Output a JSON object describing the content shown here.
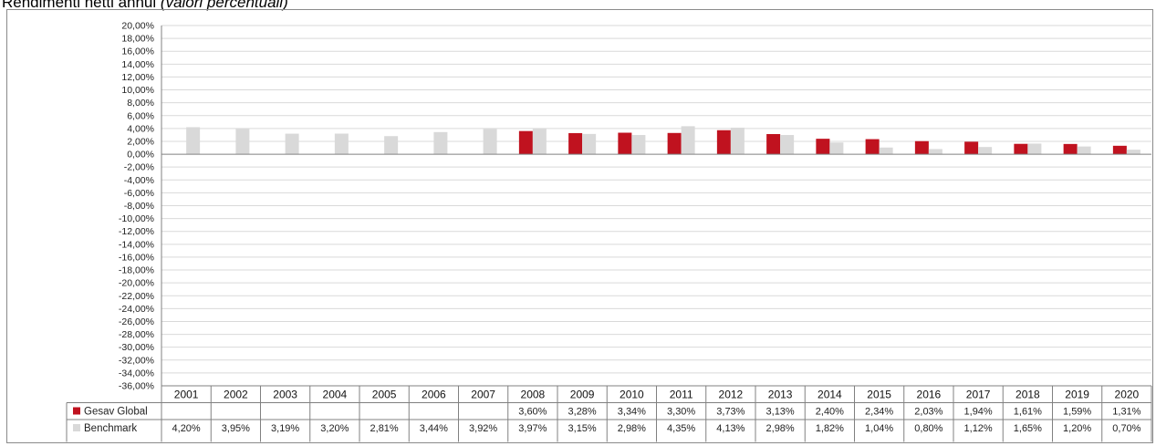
{
  "page": {
    "title": "Rendimenti netti annui",
    "subtitle": "(valori percentuali)"
  },
  "colors": {
    "gesav": "#c0121f",
    "benchmark": "#d9d9d9",
    "grid": "#d9d9d9",
    "axis": "#808080"
  },
  "chart_data": {
    "type": "bar",
    "title": "",
    "xlabel": "",
    "ylabel": "",
    "ylim": [
      -36,
      20
    ],
    "ytick_step": 2,
    "ytick_labels": [
      "20,00%",
      "18,00%",
      "16,00%",
      "14,00%",
      "12,00%",
      "10,00%",
      "8,00%",
      "6,00%",
      "4,00%",
      "2,00%",
      "0,00%",
      "-2,00%",
      "-4,00%",
      "-6,00%",
      "-8,00%",
      "-10,00%",
      "-12,00%",
      "-14,00%",
      "-16,00%",
      "-18,00%",
      "-20,00%",
      "-22,00%",
      "-24,00%",
      "-26,00%",
      "-28,00%",
      "-30,00%",
      "-32,00%",
      "-34,00%",
      "-36,00%"
    ],
    "grid": true,
    "legend": "data-table-left",
    "categories": [
      "2001",
      "2002",
      "2003",
      "2004",
      "2005",
      "2006",
      "2007",
      "2008",
      "2009",
      "2010",
      "2011",
      "2012",
      "2013",
      "2014",
      "2015",
      "2016",
      "2017",
      "2018",
      "2019",
      "2020"
    ],
    "series": [
      {
        "name": "Gesav Global",
        "color": "#c0121f",
        "values": [
          null,
          null,
          null,
          null,
          null,
          null,
          null,
          3.6,
          3.28,
          3.34,
          3.3,
          3.73,
          3.13,
          2.4,
          2.34,
          2.03,
          1.94,
          1.61,
          1.59,
          1.31
        ],
        "labels": [
          "",
          "",
          "",
          "",
          "",
          "",
          "",
          "3,60%",
          "3,28%",
          "3,34%",
          "3,30%",
          "3,73%",
          "3,13%",
          "2,40%",
          "2,34%",
          "2,03%",
          "1,94%",
          "1,61%",
          "1,59%",
          "1,31%"
        ]
      },
      {
        "name": "Benchmark",
        "color": "#d9d9d9",
        "values": [
          4.2,
          3.95,
          3.19,
          3.2,
          2.81,
          3.44,
          3.92,
          3.97,
          3.15,
          2.98,
          4.35,
          4.13,
          2.98,
          1.82,
          1.04,
          0.8,
          1.12,
          1.65,
          1.2,
          0.7
        ],
        "labels": [
          "4,20%",
          "3,95%",
          "3,19%",
          "3,20%",
          "2,81%",
          "3,44%",
          "3,92%",
          "3,97%",
          "3,15%",
          "2,98%",
          "4,35%",
          "4,13%",
          "2,98%",
          "1,82%",
          "1,04%",
          "0,80%",
          "1,12%",
          "1,65%",
          "1,20%",
          "0,70%"
        ]
      }
    ]
  }
}
